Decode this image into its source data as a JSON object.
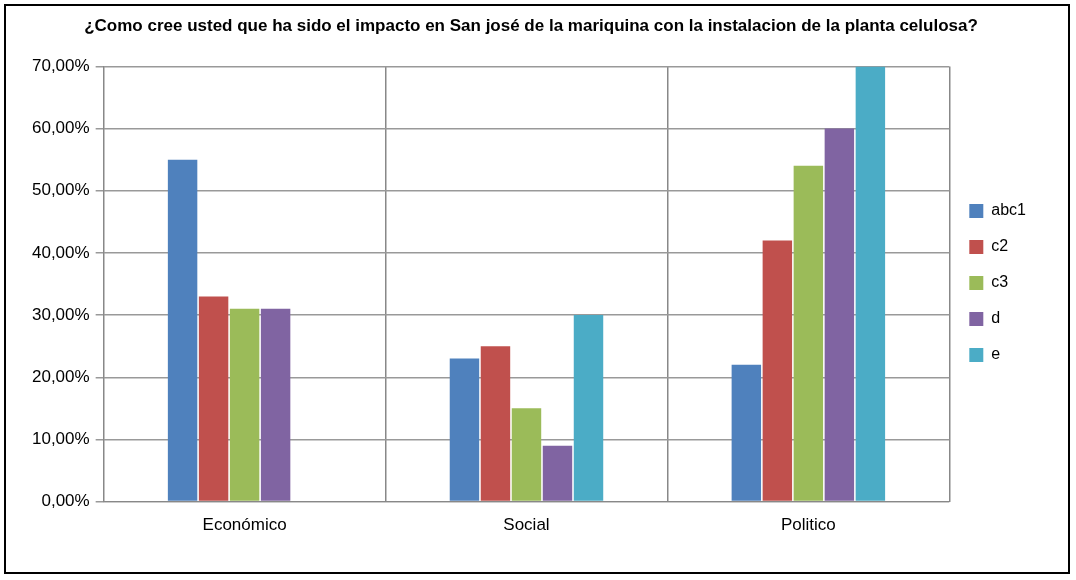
{
  "chart_data": {
    "type": "bar",
    "title": "¿Como cree usted que ha sido el impacto en San josé de la mariquina con la instalacion de la planta celulosa?",
    "categories": [
      "Económico",
      "Social",
      "Politico"
    ],
    "series": [
      {
        "name": "abc1",
        "color": "#4f81bd",
        "values": [
          55,
          23,
          22
        ]
      },
      {
        "name": "c2",
        "color": "#c0504d",
        "values": [
          33,
          25,
          42
        ]
      },
      {
        "name": "c3",
        "color": "#9bbb59",
        "values": [
          31,
          15,
          54
        ]
      },
      {
        "name": "d",
        "color": "#8064a2",
        "values": [
          31,
          9,
          60
        ]
      },
      {
        "name": "e",
        "color": "#4bacc6",
        "values": [
          0,
          30,
          70
        ]
      }
    ],
    "ylim": [
      0,
      70
    ],
    "yticks": [
      {
        "value": 0,
        "label": "0,00%"
      },
      {
        "value": 10,
        "label": "10,00%"
      },
      {
        "value": 20,
        "label": "20,00%"
      },
      {
        "value": 30,
        "label": "30,00%"
      },
      {
        "value": 40,
        "label": "40,00%"
      },
      {
        "value": 50,
        "label": "50,00%"
      },
      {
        "value": 60,
        "label": "60,00%"
      },
      {
        "value": 70,
        "label": "70,00%"
      }
    ],
    "grid": true,
    "legend": "right"
  }
}
